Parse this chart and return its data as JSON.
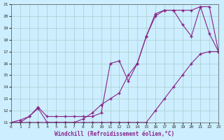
{
  "xlabel": "Windchill (Refroidissement éolien,°C)",
  "line_color": "#882288",
  "bg_color": "#cceeff",
  "grid_color": "#aacccc",
  "xlim": [
    0,
    23
  ],
  "ylim": [
    11,
    21
  ],
  "xticks": [
    0,
    1,
    2,
    3,
    4,
    5,
    6,
    7,
    8,
    9,
    10,
    11,
    12,
    13,
    14,
    15,
    16,
    17,
    18,
    19,
    20,
    21,
    22,
    23
  ],
  "yticks": [
    11,
    12,
    13,
    14,
    15,
    16,
    17,
    18,
    19,
    20,
    21
  ],
  "line1_x": [
    0,
    1,
    2,
    3,
    4,
    5,
    6,
    7,
    8,
    9,
    10,
    11,
    12,
    13,
    14,
    15,
    16,
    17,
    18,
    19,
    20,
    21,
    22,
    23
  ],
  "line1_y": [
    11,
    11,
    11,
    11,
    11,
    11,
    11,
    11,
    11,
    11,
    11,
    11,
    11,
    11,
    11,
    11,
    12,
    13,
    14,
    15,
    16,
    16.8,
    17,
    17
  ],
  "line2_x": [
    0,
    1,
    2,
    3,
    4,
    5,
    6,
    7,
    8,
    9,
    10,
    11,
    12,
    13,
    14,
    15,
    16,
    17,
    18,
    19,
    20,
    21,
    22,
    23
  ],
  "line2_y": [
    11,
    11.2,
    11.5,
    12.2,
    11,
    11,
    11,
    11,
    11.3,
    11.8,
    12.5,
    13,
    13.5,
    15,
    16,
    18.3,
    20.2,
    20.5,
    20.5,
    20.5,
    20.5,
    20.8,
    20.8,
    17
  ],
  "line3_x": [
    0,
    1,
    2,
    3,
    4,
    5,
    6,
    7,
    8,
    9,
    10,
    11,
    12,
    13,
    14,
    15,
    16,
    17,
    18,
    19,
    20,
    21,
    22,
    23
  ],
  "line3_y": [
    11,
    11,
    11.5,
    12.3,
    11.5,
    11.5,
    11.5,
    11.5,
    11.5,
    11.5,
    11.8,
    16,
    16.2,
    14.5,
    16,
    18.3,
    20,
    20.5,
    20.5,
    19.3,
    18.3,
    20.8,
    18.5,
    17
  ]
}
